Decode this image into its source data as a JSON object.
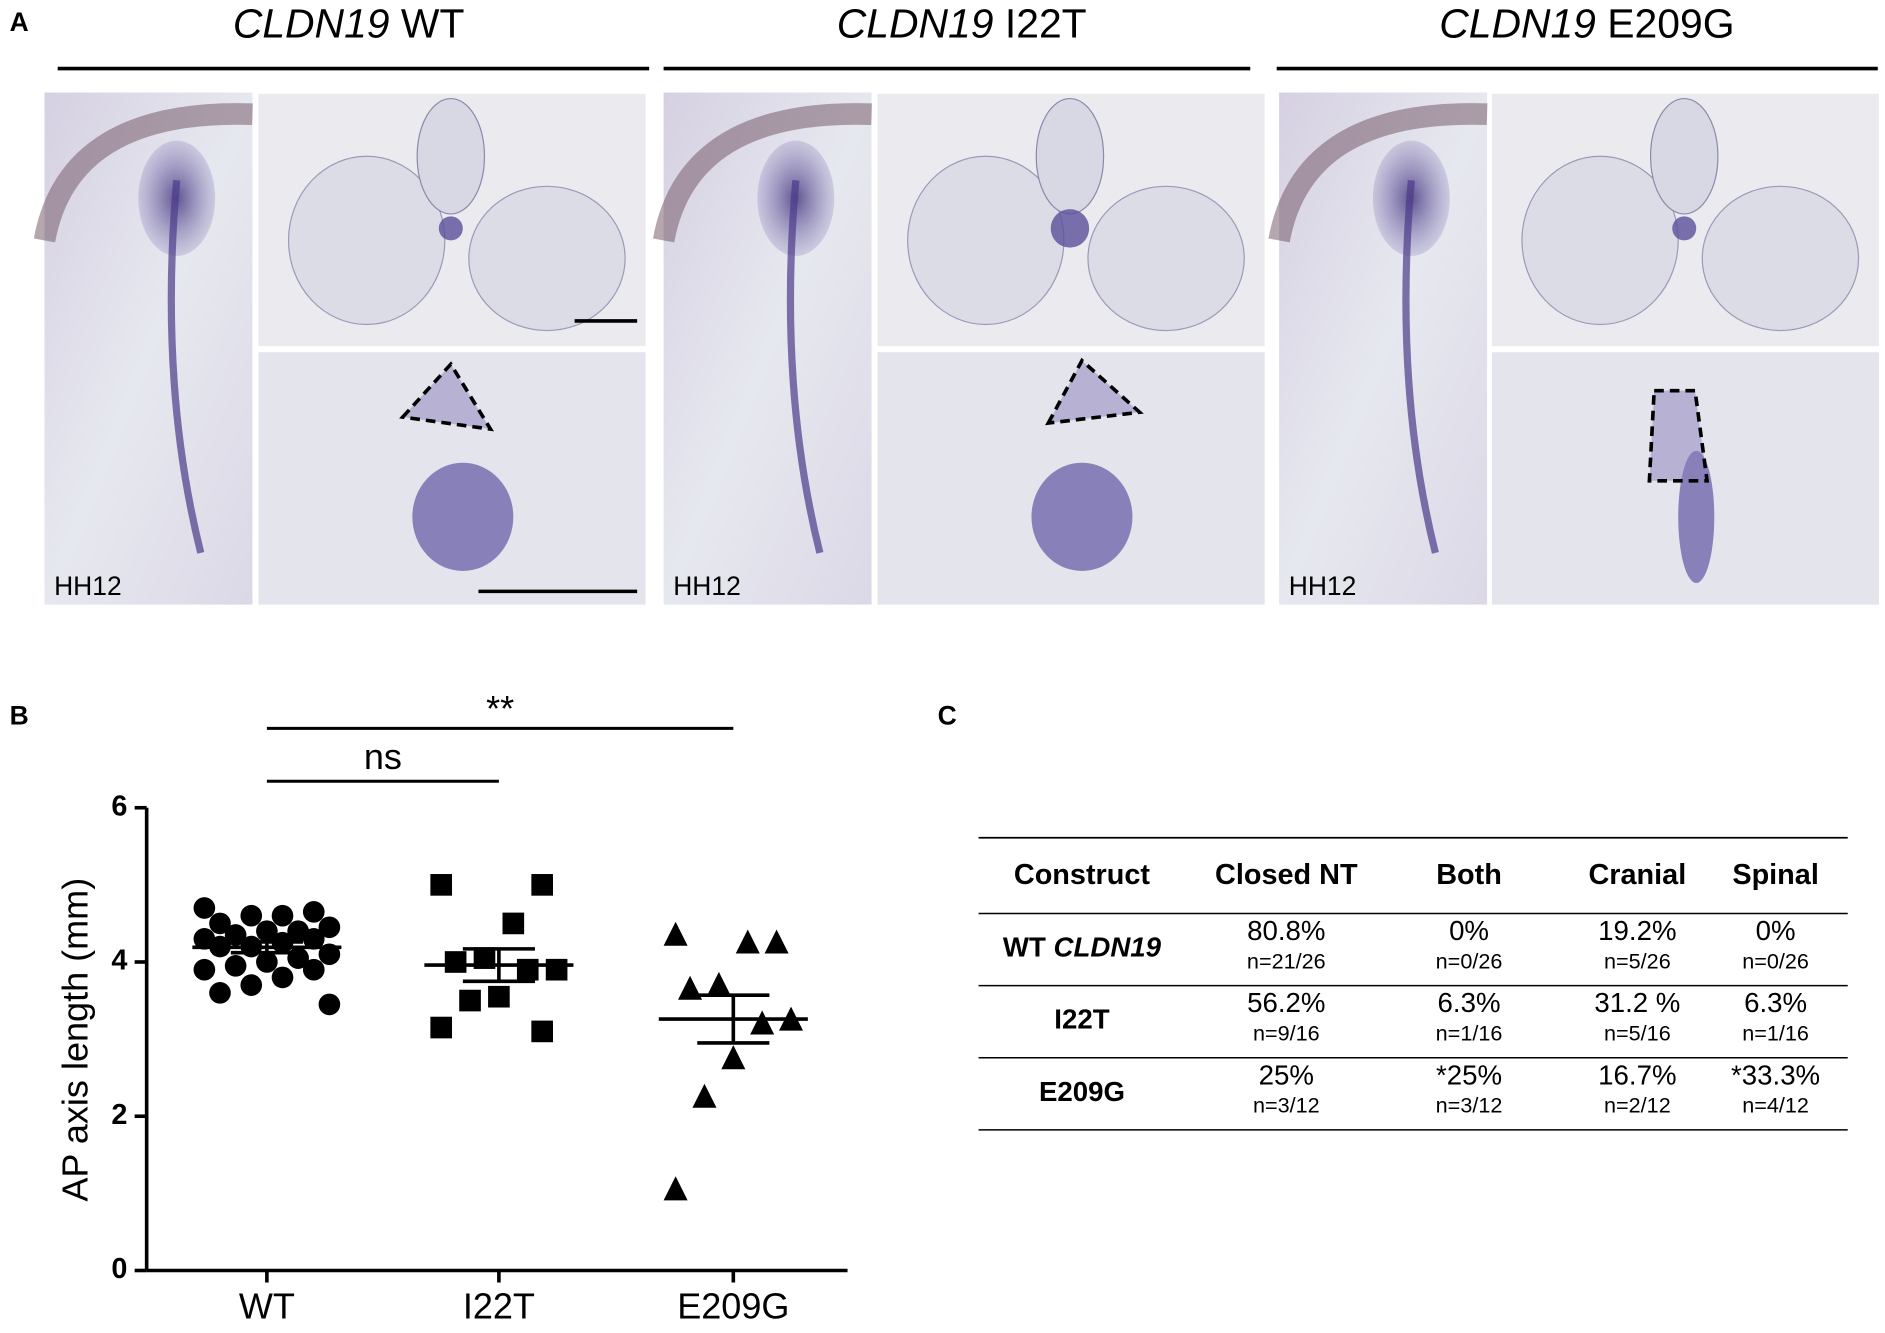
{
  "panel_a": {
    "label": "A",
    "columns": [
      {
        "gene": "CLDN19",
        "variant": "WT",
        "stage": "HH12"
      },
      {
        "gene": "CLDN19",
        "variant": "I22T",
        "stage": "HH12"
      },
      {
        "gene": "CLDN19",
        "variant": "E209G",
        "stage": "HH12"
      }
    ]
  },
  "chart_data": {
    "type": "dotplot",
    "panel_label": "B",
    "y_label": "AP axis length (mm)",
    "ylim": [
      0,
      6
    ],
    "yticks": [
      0,
      2,
      4,
      6
    ],
    "categories": [
      "WT",
      "I22T",
      "E209G"
    ],
    "color": "#000000",
    "groups": [
      {
        "marker": "circle",
        "values": [
          4.7,
          4.65,
          4.6,
          4.6,
          4.5,
          4.45,
          4.4,
          4.4,
          4.35,
          4.3,
          4.3,
          4.25,
          4.2,
          4.2,
          4.1,
          4.05,
          4.0,
          3.95,
          3.9,
          3.9,
          3.8,
          3.7,
          3.6,
          3.45
        ],
        "mean": 4.19,
        "sem": 0.07
      },
      {
        "marker": "square",
        "values": [
          5.0,
          5.0,
          4.5,
          4.05,
          4.0,
          3.9,
          3.9,
          3.55,
          3.5,
          3.15,
          3.1
        ],
        "mean": 3.96,
        "sem": 0.21
      },
      {
        "marker": "triangle",
        "values": [
          4.35,
          4.25,
          4.25,
          3.7,
          3.65,
          3.25,
          3.2,
          2.75,
          2.25,
          1.05
        ],
        "mean": 3.26,
        "sem": 0.31
      }
    ],
    "comparisons": [
      {
        "from": "WT",
        "to": "I22T",
        "text": "ns"
      },
      {
        "from": "WT",
        "to": "E209G",
        "text": "**"
      }
    ]
  },
  "table": {
    "panel_label": "C",
    "header": [
      "Construct",
      "Closed NT",
      "Both",
      "Cranial",
      "Spinal"
    ],
    "rows": [
      {
        "construct": "WT",
        "construct_gene": "CLDN19",
        "cells": [
          {
            "percent": "80.8%",
            "n": "n=21/26"
          },
          {
            "percent": "0%",
            "n": "n=0/26"
          },
          {
            "percent": "19.2%",
            "n": "n=5/26"
          },
          {
            "percent": "0%",
            "n": "n=0/26"
          }
        ]
      },
      {
        "construct": "I22T",
        "cells": [
          {
            "percent": "56.2%",
            "n": "n=9/16"
          },
          {
            "percent": "6.3%",
            "n": "n=1/16"
          },
          {
            "percent": "31.2 %",
            "n": "n=5/16"
          },
          {
            "percent": "6.3%",
            "n": "n=1/16"
          }
        ]
      },
      {
        "construct": "E209G",
        "cells": [
          {
            "percent": "25%",
            "n": "n=3/12"
          },
          {
            "percent": "*25%",
            "n": "n=3/12"
          },
          {
            "percent": "16.7%",
            "n": "n=2/12"
          },
          {
            "percent": "*33.3%",
            "n": "n=4/12"
          }
        ]
      }
    ]
  }
}
